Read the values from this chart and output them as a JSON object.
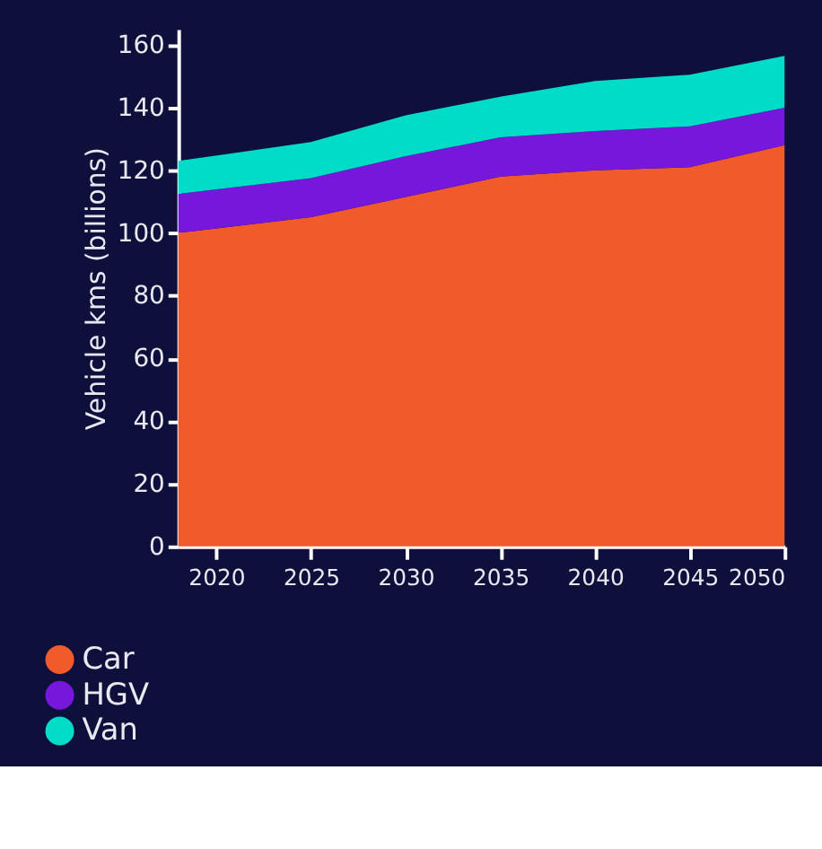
{
  "chart_data": {
    "type": "area",
    "stacked": true,
    "ylabel": "Vehicle kms (billions)",
    "x": [
      2018,
      2025,
      2030,
      2035,
      2040,
      2045,
      2050
    ],
    "series": [
      {
        "name": "Car",
        "color": "#f15a2b",
        "values": [
          100,
          105,
          111.5,
          118,
          120,
          121,
          128
        ]
      },
      {
        "name": "HGV",
        "color": "#7518dc",
        "values": [
          12.5,
          12.5,
          13,
          12.5,
          12.5,
          13,
          12
        ]
      },
      {
        "name": "Van",
        "color": "#00dcc8",
        "values": [
          10.5,
          11.5,
          13,
          13,
          16,
          16.5,
          16.5
        ]
      }
    ],
    "xlim": [
      2018,
      2050
    ],
    "xticks": [
      2020,
      2025,
      2030,
      2035,
      2040,
      2045,
      2050
    ],
    "ylim": [
      0,
      165
    ],
    "yticks": [
      0,
      20,
      40,
      60,
      80,
      100,
      120,
      140,
      160
    ],
    "grid": false,
    "legend": "bottom left"
  }
}
